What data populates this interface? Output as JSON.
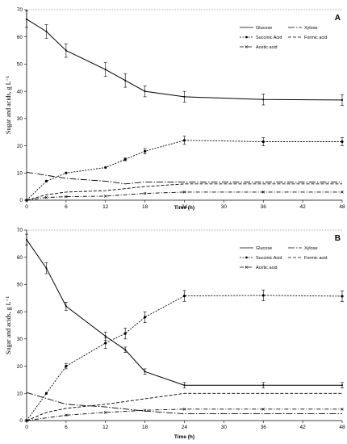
{
  "chart_data": [
    {
      "type": "line",
      "panel_label": "A",
      "xlabel": "Time (h)",
      "ylabel": "Sugar and acids, g L⁻¹",
      "xlim": [
        0,
        48
      ],
      "ylim": [
        0,
        70
      ],
      "xticks": [
        0,
        6,
        12,
        18,
        24,
        30,
        36,
        42,
        48
      ],
      "yticks": [
        0,
        10,
        20,
        30,
        40,
        50,
        60,
        70
      ],
      "legend_placement": "top-right",
      "series": [
        {
          "name": "Glucose",
          "style": "solid",
          "marker": "none",
          "x": [
            0,
            3,
            6,
            12,
            15,
            18,
            24,
            36,
            48
          ],
          "y": [
            66.5,
            62,
            55,
            48,
            44,
            40,
            38,
            37,
            36.8
          ],
          "err": [
            3,
            2.5,
            2.5,
            2.5,
            2.5,
            2,
            2,
            2,
            2
          ]
        },
        {
          "name": "Xylose",
          "style": "longdashdot",
          "marker": "none",
          "x": [
            0,
            6,
            12,
            15,
            18,
            24,
            36,
            48
          ],
          "y": [
            10.3,
            8,
            7,
            6,
            6.7,
            6.7,
            6.7,
            6.7
          ],
          "err": []
        },
        {
          "name": "Succinic Acid",
          "style": "dotted",
          "marker": "circle",
          "x": [
            0,
            3,
            6,
            12,
            15,
            18,
            24,
            36,
            48
          ],
          "y": [
            0,
            7,
            10,
            12,
            15,
            18,
            22,
            21.5,
            21.5
          ],
          "err": [
            0,
            0,
            0,
            0,
            0.5,
            1,
            1.5,
            1.5,
            1.5
          ]
        },
        {
          "name": "Formic acid",
          "style": "dashed",
          "marker": "none",
          "x": [
            0,
            3,
            6,
            12,
            18,
            24,
            36,
            48
          ],
          "y": [
            0,
            2,
            3,
            3.5,
            5,
            6,
            6,
            6
          ],
          "err": []
        },
        {
          "name": "Acetic acid",
          "style": "dashdot",
          "marker": "x",
          "x": [
            0,
            3,
            6,
            12,
            18,
            24,
            36,
            48
          ],
          "y": [
            0,
            1,
            1.3,
            1.5,
            2.5,
            3,
            3,
            3
          ],
          "err": []
        }
      ]
    },
    {
      "type": "line",
      "panel_label": "B",
      "xlabel": "Time (h)",
      "ylabel": "Sugar and acids, g L⁻¹",
      "xlim": [
        0,
        48
      ],
      "ylim": [
        0,
        70
      ],
      "xticks": [
        0,
        6,
        12,
        18,
        24,
        30,
        36,
        42,
        48
      ],
      "yticks": [
        0,
        10,
        20,
        30,
        40,
        50,
        60,
        70
      ],
      "legend_placement": "top-right",
      "series": [
        {
          "name": "Glucose",
          "style": "solid",
          "marker": "none",
          "x": [
            0,
            3,
            6,
            12,
            15,
            18,
            24,
            36,
            48
          ],
          "y": [
            66.5,
            56,
            42,
            31,
            26,
            18,
            13,
            13,
            13
          ],
          "err": [
            2,
            2,
            1.5,
            1.5,
            1,
            1,
            1,
            1,
            1
          ]
        },
        {
          "name": "Xylose",
          "style": "longdashdot",
          "marker": "none",
          "x": [
            0,
            6,
            12,
            18,
            24,
            36,
            48
          ],
          "y": [
            10.3,
            6,
            5,
            3.5,
            2.5,
            2.5,
            2.5
          ],
          "err": []
        },
        {
          "name": "Succinic Acid",
          "style": "dotted",
          "marker": "circle",
          "x": [
            0,
            3,
            6,
            12,
            15,
            18,
            24,
            36,
            48
          ],
          "y": [
            0,
            10,
            20,
            28.5,
            32,
            38,
            45.8,
            46,
            45.7
          ],
          "err": [
            0,
            0,
            1,
            2,
            2,
            2,
            2,
            2,
            2
          ]
        },
        {
          "name": "Formic acid",
          "style": "dashed",
          "marker": "none",
          "x": [
            0,
            3,
            6,
            12,
            18,
            24,
            36,
            48
          ],
          "y": [
            0,
            3,
            4.5,
            6,
            8,
            10,
            10,
            10
          ],
          "err": []
        },
        {
          "name": "Acetic acid",
          "style": "dashdot",
          "marker": "x",
          "x": [
            0,
            6,
            12,
            18,
            24,
            36,
            48
          ],
          "y": [
            0,
            2,
            3,
            3.8,
            4.2,
            4.2,
            4.2
          ],
          "err": []
        }
      ]
    }
  ]
}
